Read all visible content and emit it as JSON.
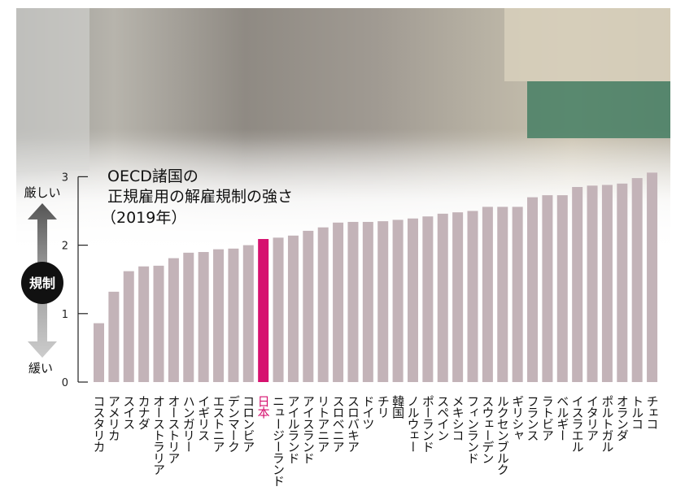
{
  "chart_data": {
    "type": "bar",
    "title": [
      "OECD諸国の",
      "正規雇用の解雇規制の強さ",
      "（2019年）"
    ],
    "ylim": [
      0,
      3
    ],
    "yticks": [
      "0",
      "1",
      "2",
      "3"
    ],
    "grid": false,
    "highlight_category": "日本",
    "colors": {
      "bar": "#c3b3b8",
      "highlight": "#d6116f",
      "highlight_label": "#d6116f"
    },
    "scale_legend": {
      "top": "厳しい",
      "center": "規制",
      "bottom": "緩い"
    },
    "categories": [
      "コスタリカ",
      "アメリカ",
      "スイス",
      "カナダ",
      "オーストラリア",
      "オーストリア",
      "ハンガリー",
      "イギリス",
      "エストニア",
      "デンマーク",
      "コロンビア",
      "日本",
      "ニュージーランド",
      "アイルランド",
      "アイスランド",
      "リトアニア",
      "スロベニア",
      "スロバキア",
      "ドイツ",
      "チリ",
      "韓国",
      "ノルウェー",
      "ポーランド",
      "スペイン",
      "メキシコ",
      "フィンランド",
      "スウェーデン",
      "ルクセンブルク",
      "ギリシャ",
      "フランス",
      "ラトビア",
      "ベルギー",
      "イスラエル",
      "イタリア",
      "ポルトガル",
      "オランダ",
      "トルコ",
      "チェコ"
    ],
    "values": [
      0.86,
      1.32,
      1.62,
      1.69,
      1.7,
      1.81,
      1.89,
      1.9,
      1.94,
      1.95,
      2.0,
      2.09,
      2.11,
      2.14,
      2.21,
      2.26,
      2.33,
      2.34,
      2.34,
      2.35,
      2.37,
      2.39,
      2.42,
      2.46,
      2.48,
      2.5,
      2.56,
      2.56,
      2.56,
      2.7,
      2.73,
      2.73,
      2.85,
      2.87,
      2.88,
      2.9,
      2.98,
      3.06
    ]
  }
}
